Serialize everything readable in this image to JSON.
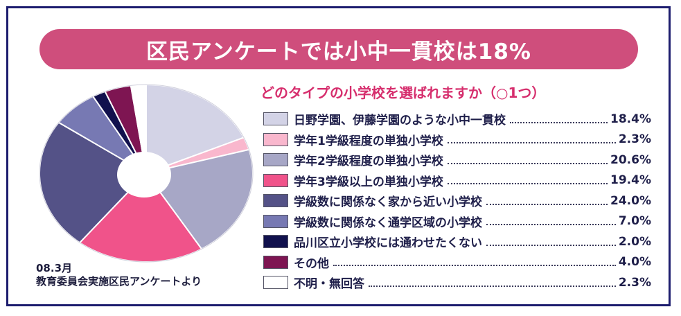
{
  "banner": {
    "title": "区民アンケートでは小中一貫校は18%"
  },
  "survey_note": {
    "line1": "08.3月",
    "line2": "教育委員会実施区民アンケートより"
  },
  "chart_data": {
    "type": "pie",
    "title": "どのタイプの小学校を選ばれますか（○1つ）",
    "unit": "%",
    "slices": [
      {
        "name": "日野学園、伊藤学園のような小中一貫校",
        "value": 18.4,
        "value_label": "18.4%",
        "color": "#d3d3e6"
      },
      {
        "name": "学年1学級程度の単独小学校",
        "value": 2.3,
        "value_label": "2.3%",
        "color": "#f9b7cd"
      },
      {
        "name": "学年2学級程度の単独小学校",
        "value": 20.6,
        "value_label": "20.6%",
        "color": "#a7a7c6"
      },
      {
        "name": "学年3学級以上の単独小学校",
        "value": 19.4,
        "value_label": "19.4%",
        "color": "#f0538a"
      },
      {
        "name": "学級数に関係なく家から近い小学校",
        "value": 24.0,
        "value_label": "24.0%",
        "color": "#545287"
      },
      {
        "name": "学級数に関係なく通学区域の小学校",
        "value": 7.0,
        "value_label": "7.0%",
        "color": "#7779b3"
      },
      {
        "name": "品川区立小学校には通わせたくない",
        "value": 2.0,
        "value_label": "2.0%",
        "color": "#11114d"
      },
      {
        "name": "その他",
        "value": 4.0,
        "value_label": "4.0%",
        "color": "#7e1552"
      },
      {
        "name": "不明・無回答",
        "value": 2.3,
        "value_label": "2.3%",
        "color": "#ffffff"
      }
    ],
    "start": "12 o'clock",
    "direction": "clockwise",
    "donut_hole": true
  }
}
